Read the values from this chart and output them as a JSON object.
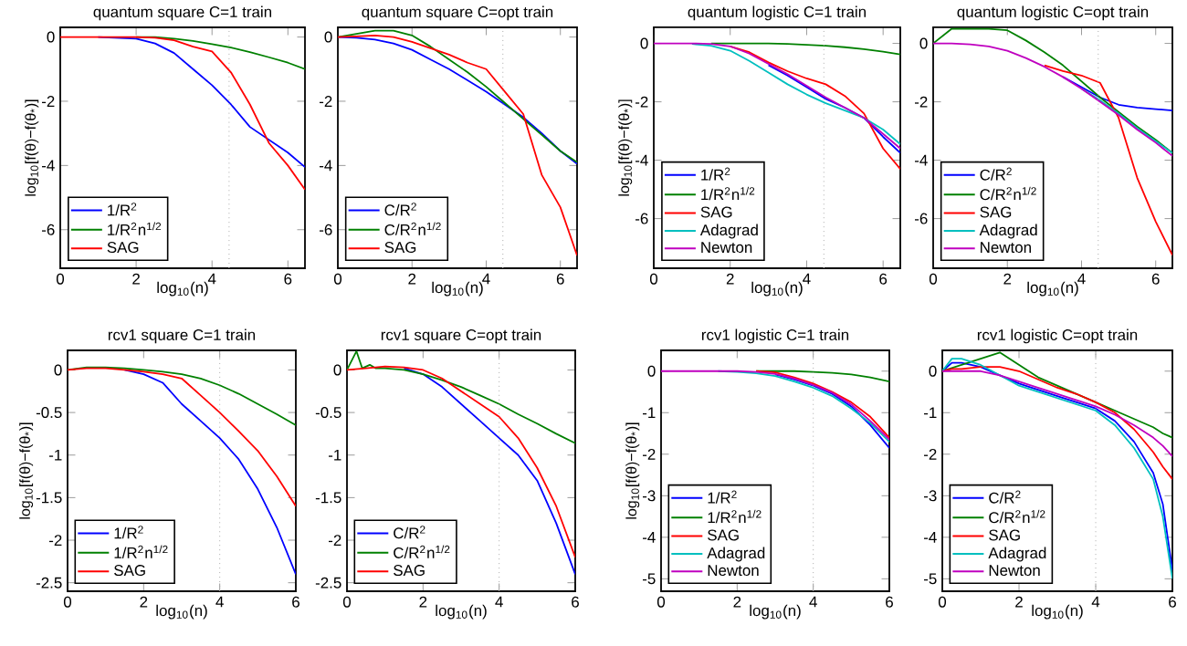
{
  "chart_data": [
    {
      "type": "line",
      "title": "quantum square C=1 train",
      "xlabel": "log$_{10}$(n)",
      "ylabel": "log$_{10}$[f(θ)−f(θ$_{*}$)]",
      "xlim": [
        0,
        6.45
      ],
      "ylim": [
        -7.2,
        0.3
      ],
      "xticks": [
        0,
        2,
        4,
        6
      ],
      "yticks": [
        -6,
        -4,
        -2,
        0
      ],
      "legend": "bottom left",
      "line_style": "solid",
      "x": [
        0,
        0.5,
        1,
        1.5,
        2,
        2.5,
        3,
        3.5,
        4,
        4.5,
        5,
        5.5,
        6,
        6.45
      ],
      "series": [
        {
          "name": "1/R$^{2}$",
          "color": "#0000ff",
          "values": [
            null,
            null,
            0,
            null,
            -0.05,
            -0.2,
            -0.5,
            -1.0,
            -1.5,
            -2.1,
            -2.8,
            -3.2,
            -3.6,
            -4.05
          ]
        },
        {
          "name": "1/R$^{2}$n$^{1/2}$",
          "color": "#008000",
          "values": [
            null,
            null,
            null,
            null,
            0,
            0,
            -0.05,
            -0.12,
            -0.22,
            -0.33,
            -0.47,
            -0.63,
            -0.8,
            -1.0
          ]
        },
        {
          "name": "SAG",
          "color": "#ff0000",
          "values": [
            0,
            0,
            0,
            0,
            0,
            -0.02,
            -0.1,
            -0.3,
            -0.45,
            -1.1,
            -2.1,
            -3.3,
            -4.0,
            -4.75
          ]
        }
      ],
      "ref_lines": [
        {
          "axis": "x",
          "value": 4.45,
          "color": "#aaaaaa",
          "line_style": "dotted"
        }
      ]
    },
    {
      "type": "line",
      "title": "quantum square C=opt train",
      "xlabel": "log$_{10}$(n)",
      "xlim": [
        0,
        6.45
      ],
      "ylim": [
        -7.2,
        0.3
      ],
      "xticks": [
        0,
        2,
        4,
        6
      ],
      "yticks": [
        -6,
        -4,
        -2,
        0
      ],
      "legend": "bottom left",
      "line_style": "solid",
      "x": [
        0,
        0.5,
        1,
        1.5,
        2,
        2.5,
        3,
        3.5,
        4,
        4.5,
        5,
        5.5,
        6,
        6.45
      ],
      "series": [
        {
          "name": "C/R$^{2}$",
          "color": "#0000ff",
          "values": [
            0,
            -0.02,
            -0.08,
            -0.2,
            -0.4,
            -0.7,
            -1.0,
            -1.35,
            -1.7,
            -2.1,
            -2.5,
            -3.0,
            -3.55,
            -3.95
          ]
        },
        {
          "name": "C/R$^{2}$n$^{1/2}$",
          "color": "#008000",
          "values": [
            0,
            0.1,
            0.2,
            0.2,
            0.05,
            -0.3,
            -0.7,
            -1.1,
            -1.55,
            -2.05,
            -2.55,
            -3.05,
            -3.55,
            -3.9
          ]
        },
        {
          "name": "SAG",
          "color": "#ff0000",
          "values": [
            0,
            0.02,
            0.05,
            0,
            -0.15,
            -0.35,
            -0.55,
            -0.8,
            -1.0,
            -1.7,
            -2.4,
            -4.3,
            -5.3,
            -6.8
          ]
        }
      ],
      "ref_lines": [
        {
          "axis": "x",
          "value": 4.45,
          "color": "#aaaaaa",
          "line_style": "dotted"
        }
      ]
    },
    {
      "type": "line",
      "title": "quantum logistic C=1 train",
      "xlabel": "log$_{10}$(n)",
      "ylabel": "log$_{10}$[f(θ)−f(θ$_{*}$)]",
      "xlim": [
        0,
        6.45
      ],
      "ylim": [
        -7.7,
        0.55
      ],
      "xticks": [
        0,
        2,
        4,
        6
      ],
      "yticks": [
        -6,
        -4,
        -2,
        0
      ],
      "legend": "bottom left",
      "line_style": "solid",
      "x": [
        0,
        0.5,
        1,
        1.5,
        2,
        2.5,
        3,
        3.5,
        4,
        4.5,
        5,
        5.5,
        6,
        6.45
      ],
      "series": [
        {
          "name": "1/R$^{2}$",
          "color": "#0000ff",
          "values": [
            null,
            null,
            null,
            null,
            null,
            null,
            -0.75,
            -1.1,
            -1.5,
            -1.9,
            -2.2,
            -2.55,
            -3.2,
            -3.75
          ]
        },
        {
          "name": "1/R$^{2}$n$^{1/2}$",
          "color": "#008000",
          "values": [
            null,
            null,
            null,
            0,
            0,
            0,
            0,
            -0.02,
            -0.05,
            -0.08,
            -0.13,
            -0.2,
            -0.28,
            -0.38
          ]
        },
        {
          "name": "SAG",
          "color": "#ff0000",
          "values": [
            null,
            null,
            null,
            null,
            -0.1,
            -0.3,
            -0.65,
            -0.95,
            -1.2,
            -1.4,
            -1.8,
            -2.4,
            -3.6,
            -4.3
          ]
        },
        {
          "name": "Adagrad",
          "color": "#00bfbf",
          "values": [
            null,
            null,
            -0.02,
            -0.08,
            -0.25,
            -0.6,
            -1.0,
            -1.4,
            -1.75,
            -2.05,
            -2.3,
            -2.55,
            -2.95,
            -3.45
          ]
        },
        {
          "name": "Newton",
          "color": "#bf00bf",
          "values": [
            0,
            0,
            0,
            -0.02,
            -0.1,
            -0.35,
            -0.7,
            -1.05,
            -1.45,
            -1.85,
            -2.2,
            -2.55,
            -3.1,
            -3.6
          ]
        }
      ],
      "ref_lines": [
        {
          "axis": "x",
          "value": 4.45,
          "color": "#aaaaaa",
          "line_style": "dotted"
        }
      ]
    },
    {
      "type": "line",
      "title": "quantum logistic C=opt train",
      "xlabel": "log$_{10}$(n)",
      "xlim": [
        0,
        6.45
      ],
      "ylim": [
        -7.7,
        0.55
      ],
      "xticks": [
        0,
        2,
        4,
        6
      ],
      "yticks": [
        -6,
        -4,
        -2,
        0
      ],
      "legend": "bottom left",
      "line_style": "solid",
      "x": [
        0,
        0.5,
        1,
        1.5,
        2,
        2.5,
        3,
        3.5,
        4,
        4.5,
        5,
        5.5,
        6,
        6.45
      ],
      "series": [
        {
          "name": "C/R$^{2}$",
          "color": "#0000ff",
          "values": [
            null,
            null,
            null,
            null,
            null,
            null,
            null,
            -1.15,
            -1.5,
            -1.85,
            -2.1,
            -2.2,
            -2.25,
            -2.3
          ]
        },
        {
          "name": "C/R$^{2}$n$^{1/2}$",
          "color": "#008000",
          "values": [
            0,
            0.5,
            0.5,
            0.5,
            0.45,
            0.1,
            -0.3,
            -0.75,
            -1.3,
            -1.85,
            -2.35,
            -2.85,
            -3.3,
            -3.75
          ]
        },
        {
          "name": "SAG",
          "color": "#ff0000",
          "values": [
            null,
            null,
            null,
            null,
            null,
            null,
            -0.75,
            -0.95,
            -1.1,
            -1.35,
            -2.55,
            -4.6,
            -6.1,
            -7.25
          ]
        },
        {
          "name": "Adagrad",
          "color": "#00bfbf",
          "values": [
            null,
            null,
            null,
            null,
            null,
            null,
            null,
            null,
            -1.55,
            -1.95,
            -2.4,
            -2.9,
            -3.35,
            -3.75
          ]
        },
        {
          "name": "Newton",
          "color": "#bf00bf",
          "values": [
            0,
            0,
            -0.03,
            -0.1,
            -0.25,
            -0.5,
            -0.8,
            -1.15,
            -1.55,
            -2.0,
            -2.45,
            -2.95,
            -3.4,
            -3.85
          ]
        }
      ],
      "ref_lines": [
        {
          "axis": "x",
          "value": 4.45,
          "color": "#aaaaaa",
          "line_style": "dotted"
        }
      ]
    },
    {
      "type": "line",
      "title": "rcv1 square C=1 train",
      "xlabel": "log$_{10}$(n)",
      "ylabel": "log$_{10}$[f(θ)−f(θ$_{*}$)]",
      "xlim": [
        0,
        6
      ],
      "ylim": [
        -2.6,
        0.23
      ],
      "xticks": [
        0,
        2,
        4,
        6
      ],
      "yticks": [
        -2.5,
        -2,
        -1.5,
        -1,
        -0.5,
        0
      ],
      "legend": "bottom left",
      "line_style": "solid",
      "x": [
        0,
        0.5,
        1,
        1.5,
        2,
        2.5,
        3,
        3.5,
        4,
        4.5,
        5,
        5.5,
        6
      ],
      "series": [
        {
          "name": "1/R$^{2}$",
          "color": "#0000ff",
          "values": [
            null,
            null,
            null,
            0,
            -0.05,
            -0.15,
            -0.4,
            -0.6,
            -0.8,
            -1.05,
            -1.4,
            -1.85,
            -2.4
          ]
        },
        {
          "name": "1/R$^{2}$n$^{1/2}$",
          "color": "#008000",
          "values": [
            0,
            0.03,
            0.03,
            0.02,
            0,
            -0.02,
            -0.05,
            -0.1,
            -0.18,
            -0.28,
            -0.4,
            -0.52,
            -0.65
          ]
        },
        {
          "name": "SAG",
          "color": "#ff0000",
          "values": [
            0,
            0.02,
            0.02,
            0,
            -0.02,
            -0.05,
            -0.1,
            -0.3,
            -0.5,
            -0.72,
            -0.95,
            -1.25,
            -1.6
          ]
        }
      ],
      "ref_lines": [
        {
          "axis": "x",
          "value": 4,
          "color": "#aaaaaa",
          "line_style": "dotted"
        }
      ]
    },
    {
      "type": "line",
      "title": "rcv1 square C=opt train",
      "xlabel": "log$_{10}$(n)",
      "xlim": [
        0,
        6
      ],
      "ylim": [
        -2.6,
        0.23
      ],
      "xticks": [
        0,
        2,
        4,
        6
      ],
      "yticks": [
        -2.5,
        -2,
        -1.5,
        -1,
        -0.5,
        0
      ],
      "legend": "bottom left",
      "line_style": "solid",
      "x": [
        0,
        0.5,
        1,
        1.5,
        2,
        2.5,
        3,
        3.5,
        4,
        4.5,
        5,
        5.5,
        6
      ],
      "series": [
        {
          "name": "C/R$^{2}$",
          "color": "#0000ff",
          "values": [
            null,
            null,
            null,
            0.02,
            -0.05,
            -0.2,
            -0.4,
            -0.6,
            -0.8,
            -1.0,
            -1.3,
            -1.8,
            -2.4
          ]
        },
        {
          "name": "C/R$^{2}$n$^{1/2}$",
          "color": "#008000",
          "x": [
            0,
            0.25,
            0.4,
            0.6,
            0.75,
            1,
            1.5,
            2,
            2.5,
            3,
            3.5,
            4,
            4.5,
            5,
            5.5,
            6
          ],
          "values": [
            0,
            0.22,
            0.02,
            0.06,
            0.02,
            0.02,
            0,
            -0.05,
            -0.12,
            -0.2,
            -0.3,
            -0.4,
            -0.52,
            -0.63,
            -0.75,
            -0.86
          ]
        },
        {
          "name": "SAG",
          "color": "#ff0000",
          "values": [
            0,
            0.02,
            0.04,
            0.03,
            0,
            -0.1,
            -0.25,
            -0.4,
            -0.55,
            -0.8,
            -1.15,
            -1.6,
            -2.2
          ]
        }
      ],
      "ref_lines": [
        {
          "axis": "x",
          "value": 4,
          "color": "#aaaaaa",
          "line_style": "dotted"
        }
      ]
    },
    {
      "type": "line",
      "title": "rcv1 logistic C=1 train",
      "xlabel": "log$_{10}$(n)",
      "ylabel": "log$_{10}$[f(θ)−f(θ$_{*}$)]",
      "xlim": [
        0,
        6
      ],
      "ylim": [
        -5.3,
        0.5
      ],
      "xticks": [
        0,
        2,
        4,
        6
      ],
      "yticks": [
        -5,
        -4,
        -3,
        -2,
        -1,
        0
      ],
      "legend": "bottom left",
      "line_style": "solid",
      "x": [
        0,
        0.5,
        1,
        1.5,
        2,
        2.5,
        3,
        3.5,
        4,
        4.5,
        5,
        5.5,
        6
      ],
      "series": [
        {
          "name": "1/R$^{2}$",
          "color": "#0000ff",
          "values": [
            null,
            null,
            null,
            null,
            null,
            null,
            -0.08,
            -0.2,
            -0.35,
            -0.55,
            -0.85,
            -1.3,
            -1.85
          ]
        },
        {
          "name": "1/R$^{2}$n$^{1/2}$",
          "color": "#008000",
          "values": [
            null,
            null,
            null,
            null,
            null,
            0,
            0,
            0,
            -0.02,
            -0.04,
            -0.08,
            -0.15,
            -0.25
          ]
        },
        {
          "name": "SAG",
          "color": "#ff0000",
          "values": [
            null,
            null,
            null,
            null,
            null,
            0,
            -0.03,
            -0.15,
            -0.3,
            -0.5,
            -0.75,
            -1.1,
            -1.6
          ]
        },
        {
          "name": "Adagrad",
          "color": "#00bfbf",
          "values": [
            null,
            null,
            null,
            0,
            -0.02,
            -0.05,
            -0.12,
            -0.25,
            -0.4,
            -0.6,
            -0.9,
            -1.25,
            -1.7
          ]
        },
        {
          "name": "Newton",
          "color": "#bf00bf",
          "values": [
            0,
            0,
            0,
            0,
            0,
            -0.02,
            -0.07,
            -0.18,
            -0.33,
            -0.52,
            -0.8,
            -1.2,
            -1.65
          ]
        }
      ],
      "ref_lines": [
        {
          "axis": "x",
          "value": 4,
          "color": "#aaaaaa",
          "line_style": "dotted"
        }
      ]
    },
    {
      "type": "line",
      "title": "rcv1 logistic C=opt train",
      "xlabel": "log$_{10}$(n)",
      "xlim": [
        0,
        6
      ],
      "ylim": [
        -5.3,
        0.5
      ],
      "xticks": [
        0,
        2,
        4,
        6
      ],
      "yticks": [
        -5,
        -4,
        -3,
        -2,
        -1,
        0
      ],
      "legend": "bottom left",
      "line_style": "solid",
      "x": [
        0,
        0.25,
        0.5,
        1,
        1.5,
        2,
        2.5,
        3,
        3.5,
        4,
        4.5,
        5,
        5.5,
        5.75,
        6
      ],
      "series": [
        {
          "name": "C/R$^{2}$",
          "color": "#0000ff",
          "values": [
            0,
            0.2,
            0.2,
            0.1,
            -0.1,
            -0.3,
            -0.45,
            -0.6,
            -0.75,
            -0.9,
            -1.2,
            -1.7,
            -2.45,
            -3.2,
            -4.8
          ]
        },
        {
          "name": "C/R$^{2}$n$^{1/2}$",
          "color": "#008000",
          "values": [
            0,
            null,
            null,
            null,
            0.45,
            0.15,
            -0.15,
            -0.35,
            -0.55,
            -0.75,
            -0.95,
            -1.15,
            -1.35,
            -1.5,
            -1.6
          ]
        },
        {
          "name": "SAG",
          "color": "#ff0000",
          "values": [
            0,
            0.05,
            0.05,
            0.1,
            0.1,
            0,
            -0.2,
            -0.4,
            -0.55,
            -0.75,
            -1.0,
            -1.4,
            -1.95,
            -2.3,
            -2.6
          ]
        },
        {
          "name": "Adagrad",
          "color": "#00bfbf",
          "values": [
            0,
            0.3,
            0.3,
            0.15,
            -0.1,
            -0.35,
            -0.5,
            -0.65,
            -0.8,
            -0.95,
            -1.3,
            -1.85,
            -2.6,
            -3.5,
            -5.0
          ]
        },
        {
          "name": "Newton",
          "color": "#bf00bf",
          "values": [
            0,
            0,
            0,
            0,
            -0.1,
            -0.25,
            -0.4,
            -0.55,
            -0.7,
            -0.85,
            -1.05,
            -1.3,
            -1.6,
            -1.8,
            -2.05
          ]
        }
      ],
      "ref_lines": [
        {
          "axis": "x",
          "value": 4,
          "color": "#aaaaaa",
          "line_style": "dotted"
        }
      ]
    }
  ]
}
